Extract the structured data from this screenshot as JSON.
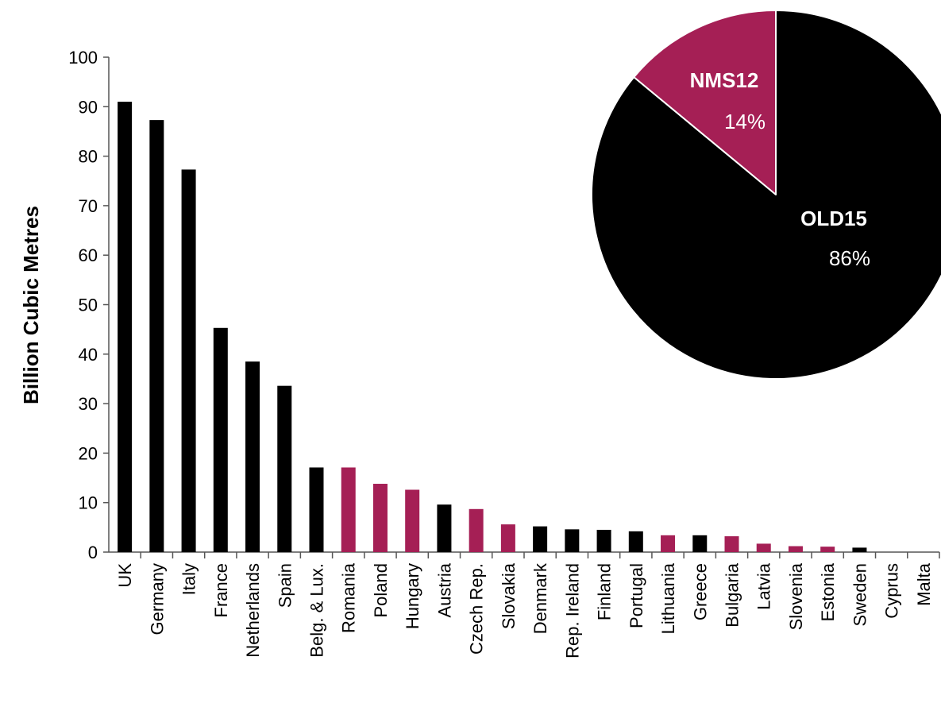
{
  "chart_data": [
    {
      "type": "bar",
      "ylabel": "Billion Cubic Metres",
      "xlabel": "",
      "ylim": [
        0,
        100
      ],
      "yticks": [
        0,
        10,
        20,
        30,
        40,
        50,
        60,
        70,
        80,
        90,
        100
      ],
      "grid": false,
      "categories": [
        "UK",
        "Germany",
        "Italy",
        "France",
        "Netherlands",
        "Spain",
        "Belg. & Lux.",
        "Romania",
        "Poland",
        "Hungary",
        "Austria",
        "Czech Rep.",
        "Slovakia",
        "Denmark",
        "Rep. Ireland",
        "Finland",
        "Portugal",
        "Lithuania",
        "Greece",
        "Bulgaria",
        "Latvia",
        "Slovenia",
        "Estonia",
        "Sweden",
        "Cyprus",
        "Malta"
      ],
      "values": [
        91,
        87.3,
        77.3,
        45.3,
        38.5,
        33.6,
        17.1,
        17.1,
        13.8,
        12.6,
        9.6,
        8.7,
        5.6,
        5.2,
        4.6,
        4.5,
        4.2,
        3.4,
        3.4,
        3.2,
        1.7,
        1.2,
        1.1,
        0.9,
        0,
        0
      ],
      "groups": [
        "OLD15",
        "OLD15",
        "OLD15",
        "OLD15",
        "OLD15",
        "OLD15",
        "OLD15",
        "NMS12",
        "NMS12",
        "NMS12",
        "OLD15",
        "NMS12",
        "NMS12",
        "OLD15",
        "OLD15",
        "OLD15",
        "OLD15",
        "NMS12",
        "OLD15",
        "NMS12",
        "NMS12",
        "NMS12",
        "NMS12",
        "OLD15",
        "NMS12",
        "NMS12"
      ],
      "colors": {
        "OLD15": "#000000",
        "NMS12": "#a51f55"
      }
    },
    {
      "type": "pie",
      "slices": [
        {
          "name": "NMS12",
          "value": 14,
          "label": "14%",
          "color": "#a51f55"
        },
        {
          "name": "OLD15",
          "value": 86,
          "label": "86%",
          "color": "#000000"
        }
      ]
    }
  ]
}
